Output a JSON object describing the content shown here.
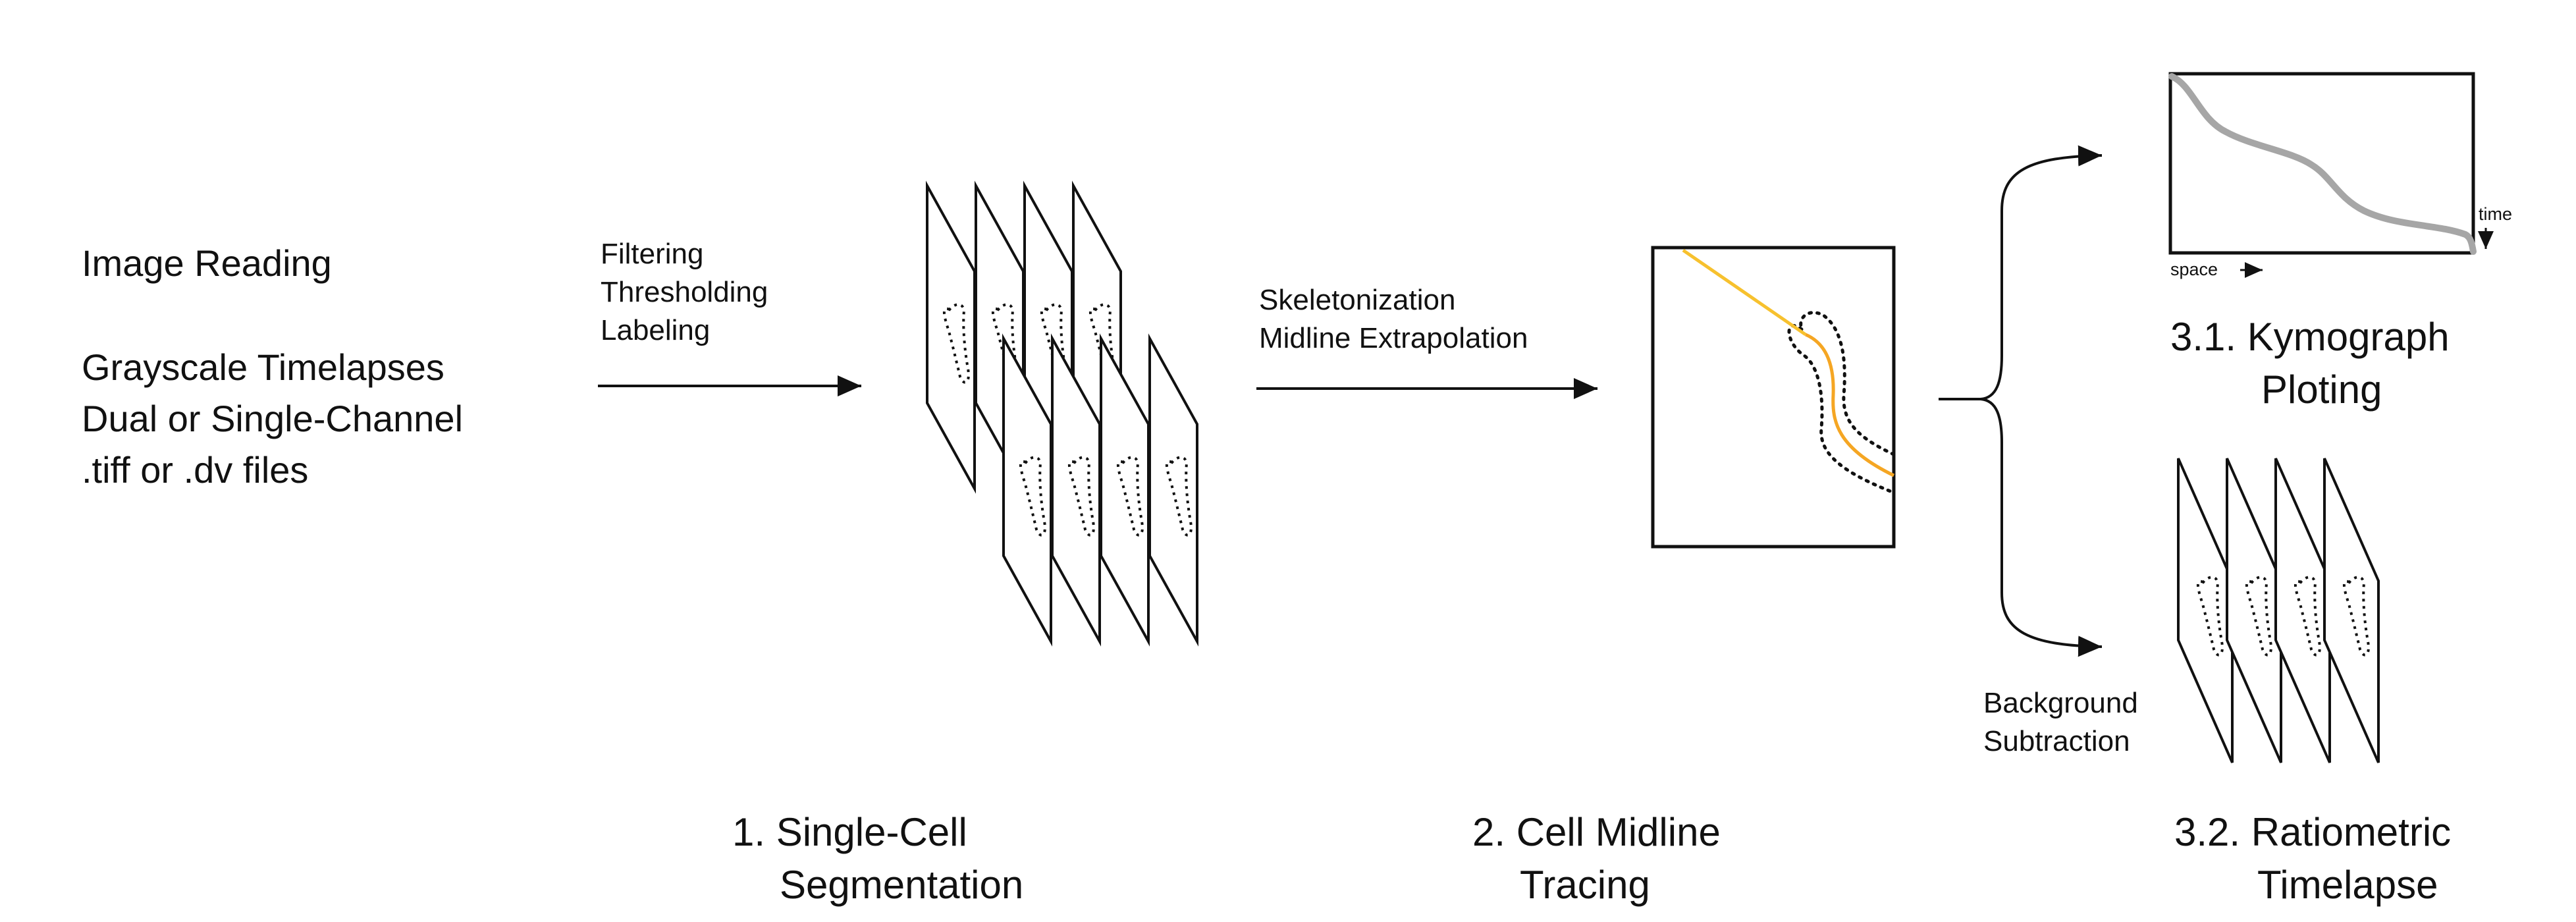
{
  "input": {
    "title": "Image Reading",
    "line1": "Grayscale Timelapses",
    "line2": "Dual or Single-Channel",
    "line3": ".tiff or .dv files"
  },
  "arrow1_labels": {
    "line1": "Filtering",
    "line2": "Thresholding",
    "line3": "Labeling"
  },
  "arrow2_labels": {
    "line1": "Skeletonization",
    "line2": "Midline Extrapolation"
  },
  "kymograph": {
    "x_axis_label": "space",
    "y_axis_label": "time",
    "title_line1": "3.1. Kymograph",
    "title_line2": "Ploting"
  },
  "background_step": {
    "line1": "Background",
    "line2": "Subtraction"
  },
  "steps": {
    "step1_line1": "1. Single-Cell",
    "step1_line2": "Segmentation",
    "step2_line1": "2. Cell Midline",
    "step2_line2": "Tracing",
    "step3_line1": "3.2. Ratiometric",
    "step3_line2": "Timelapse"
  },
  "colors": {
    "midline": "#f5a623",
    "midline_ray": "#f7c12e",
    "kymo_trace": "#a6a6a6",
    "stroke": "#111111"
  },
  "icons": {
    "arrow": "arrow-right-icon",
    "brace": "curly-brace-icon",
    "stack": "image-stack-icon",
    "cell": "cell-outline-icon"
  }
}
